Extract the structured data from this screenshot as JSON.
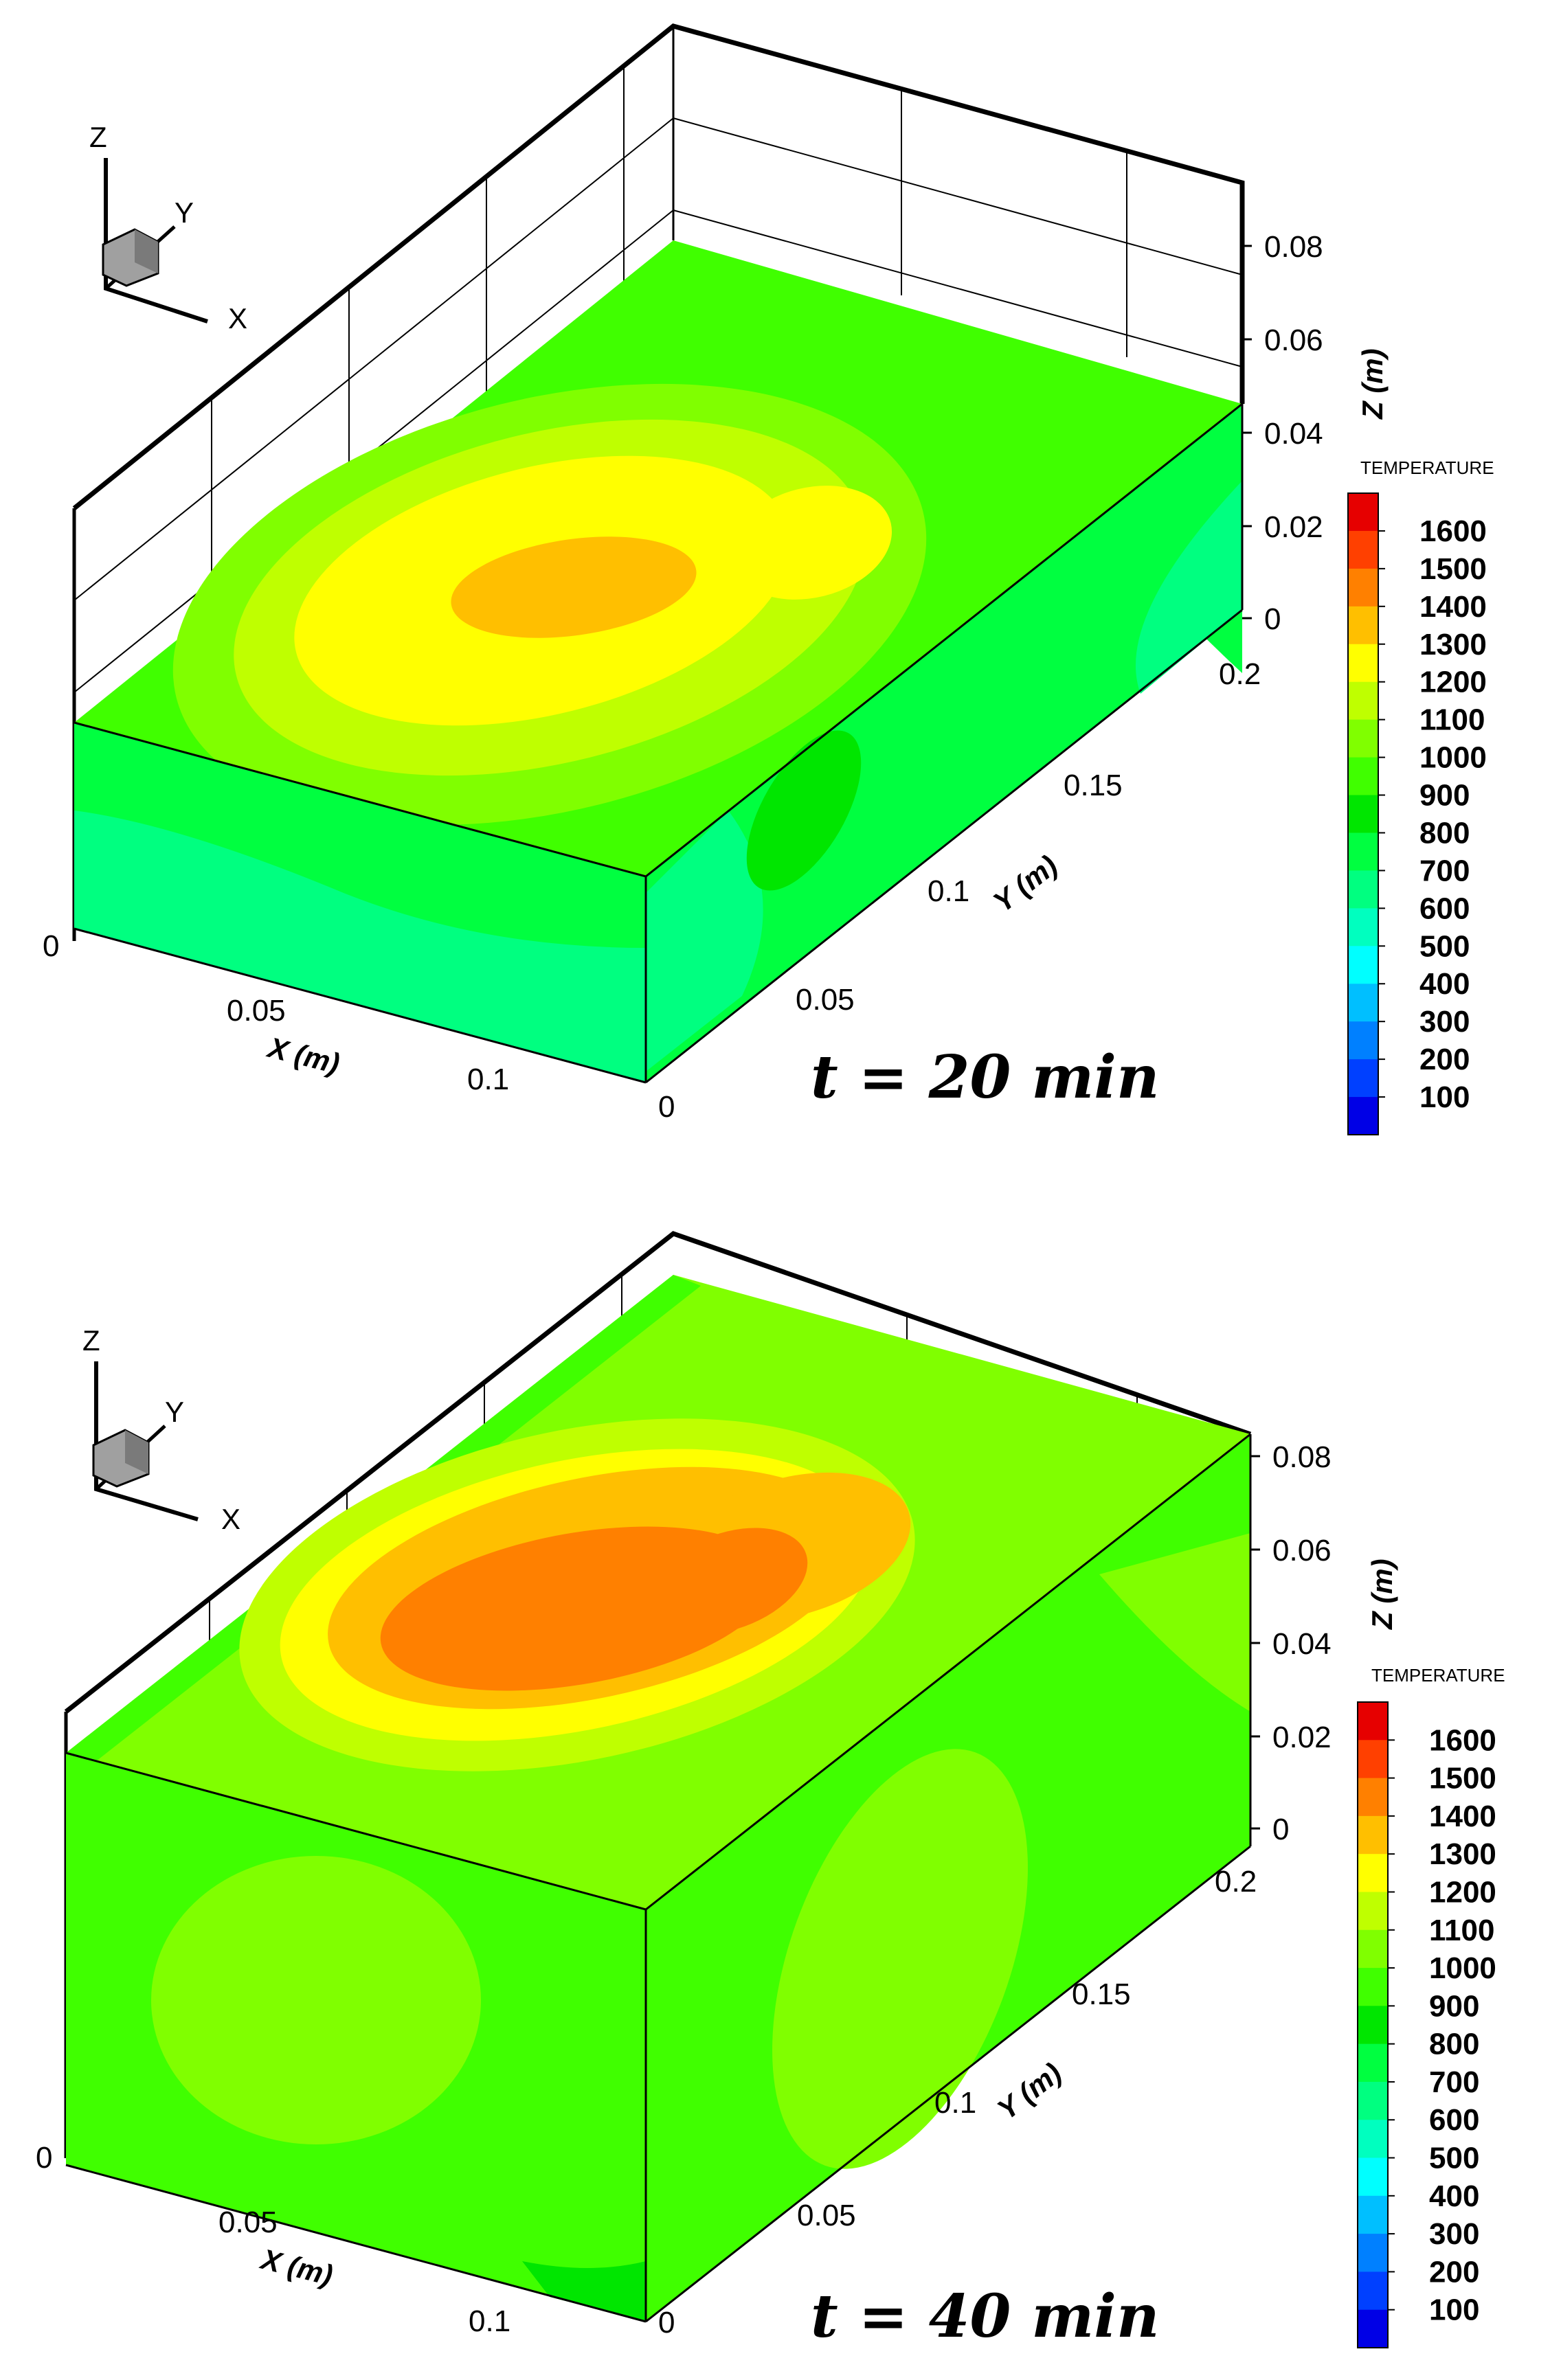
{
  "panels": [
    {
      "time_label": "t = 20 min",
      "legend_title": "TEMPERATURE",
      "legend_levels": [
        "1600",
        "1500",
        "1400",
        "1300",
        "1200",
        "1100",
        "1000",
        "900",
        "800",
        "700",
        "600",
        "500",
        "400",
        "300",
        "200",
        "100"
      ],
      "legend_colors": [
        "#e60000",
        "#ff4000",
        "#ff8000",
        "#ffbf00",
        "#ffff00",
        "#bfff00",
        "#80ff00",
        "#40ff00",
        "#00e600",
        "#00ff40",
        "#00ff80",
        "#00ffbf",
        "#00ffff",
        "#00bfff",
        "#0080ff",
        "#0040ff",
        "#0000e6"
      ],
      "x_axis": {
        "title": "X (m)",
        "ticks": [
          "0",
          "0.05",
          "0.1"
        ]
      },
      "y_axis": {
        "title": "Y (m)",
        "ticks": [
          "0",
          "0.05",
          "0.1",
          "0.15",
          "0.2"
        ]
      },
      "z_axis": {
        "title": "Z (m)",
        "ticks": [
          "0",
          "0.02",
          "0.04",
          "0.06",
          "0.08"
        ]
      },
      "triad": {
        "x": "X",
        "y": "Y",
        "z": "Z"
      }
    },
    {
      "time_label": "t = 40 min",
      "legend_title": "TEMPERATURE",
      "legend_levels": [
        "1600",
        "1500",
        "1400",
        "1300",
        "1200",
        "1100",
        "1000",
        "900",
        "800",
        "700",
        "600",
        "500",
        "400",
        "300",
        "200",
        "100"
      ],
      "legend_colors": [
        "#e60000",
        "#ff4000",
        "#ff8000",
        "#ffbf00",
        "#ffff00",
        "#bfff00",
        "#80ff00",
        "#40ff00",
        "#00e600",
        "#00ff40",
        "#00ff80",
        "#00ffbf",
        "#00ffff",
        "#00bfff",
        "#0080ff",
        "#0040ff",
        "#0000e6"
      ],
      "x_axis": {
        "title": "X (m)",
        "ticks": [
          "0",
          "0.05",
          "0.1"
        ]
      },
      "y_axis": {
        "title": "Y (m)",
        "ticks": [
          "0",
          "0.05",
          "0.1",
          "0.15",
          "0.2"
        ]
      },
      "z_axis": {
        "title": "Z (m)",
        "ticks": [
          "0",
          "0.02",
          "0.04",
          "0.06",
          "0.08"
        ]
      },
      "triad": {
        "x": "X",
        "y": "Y",
        "z": "Z"
      }
    }
  ]
}
